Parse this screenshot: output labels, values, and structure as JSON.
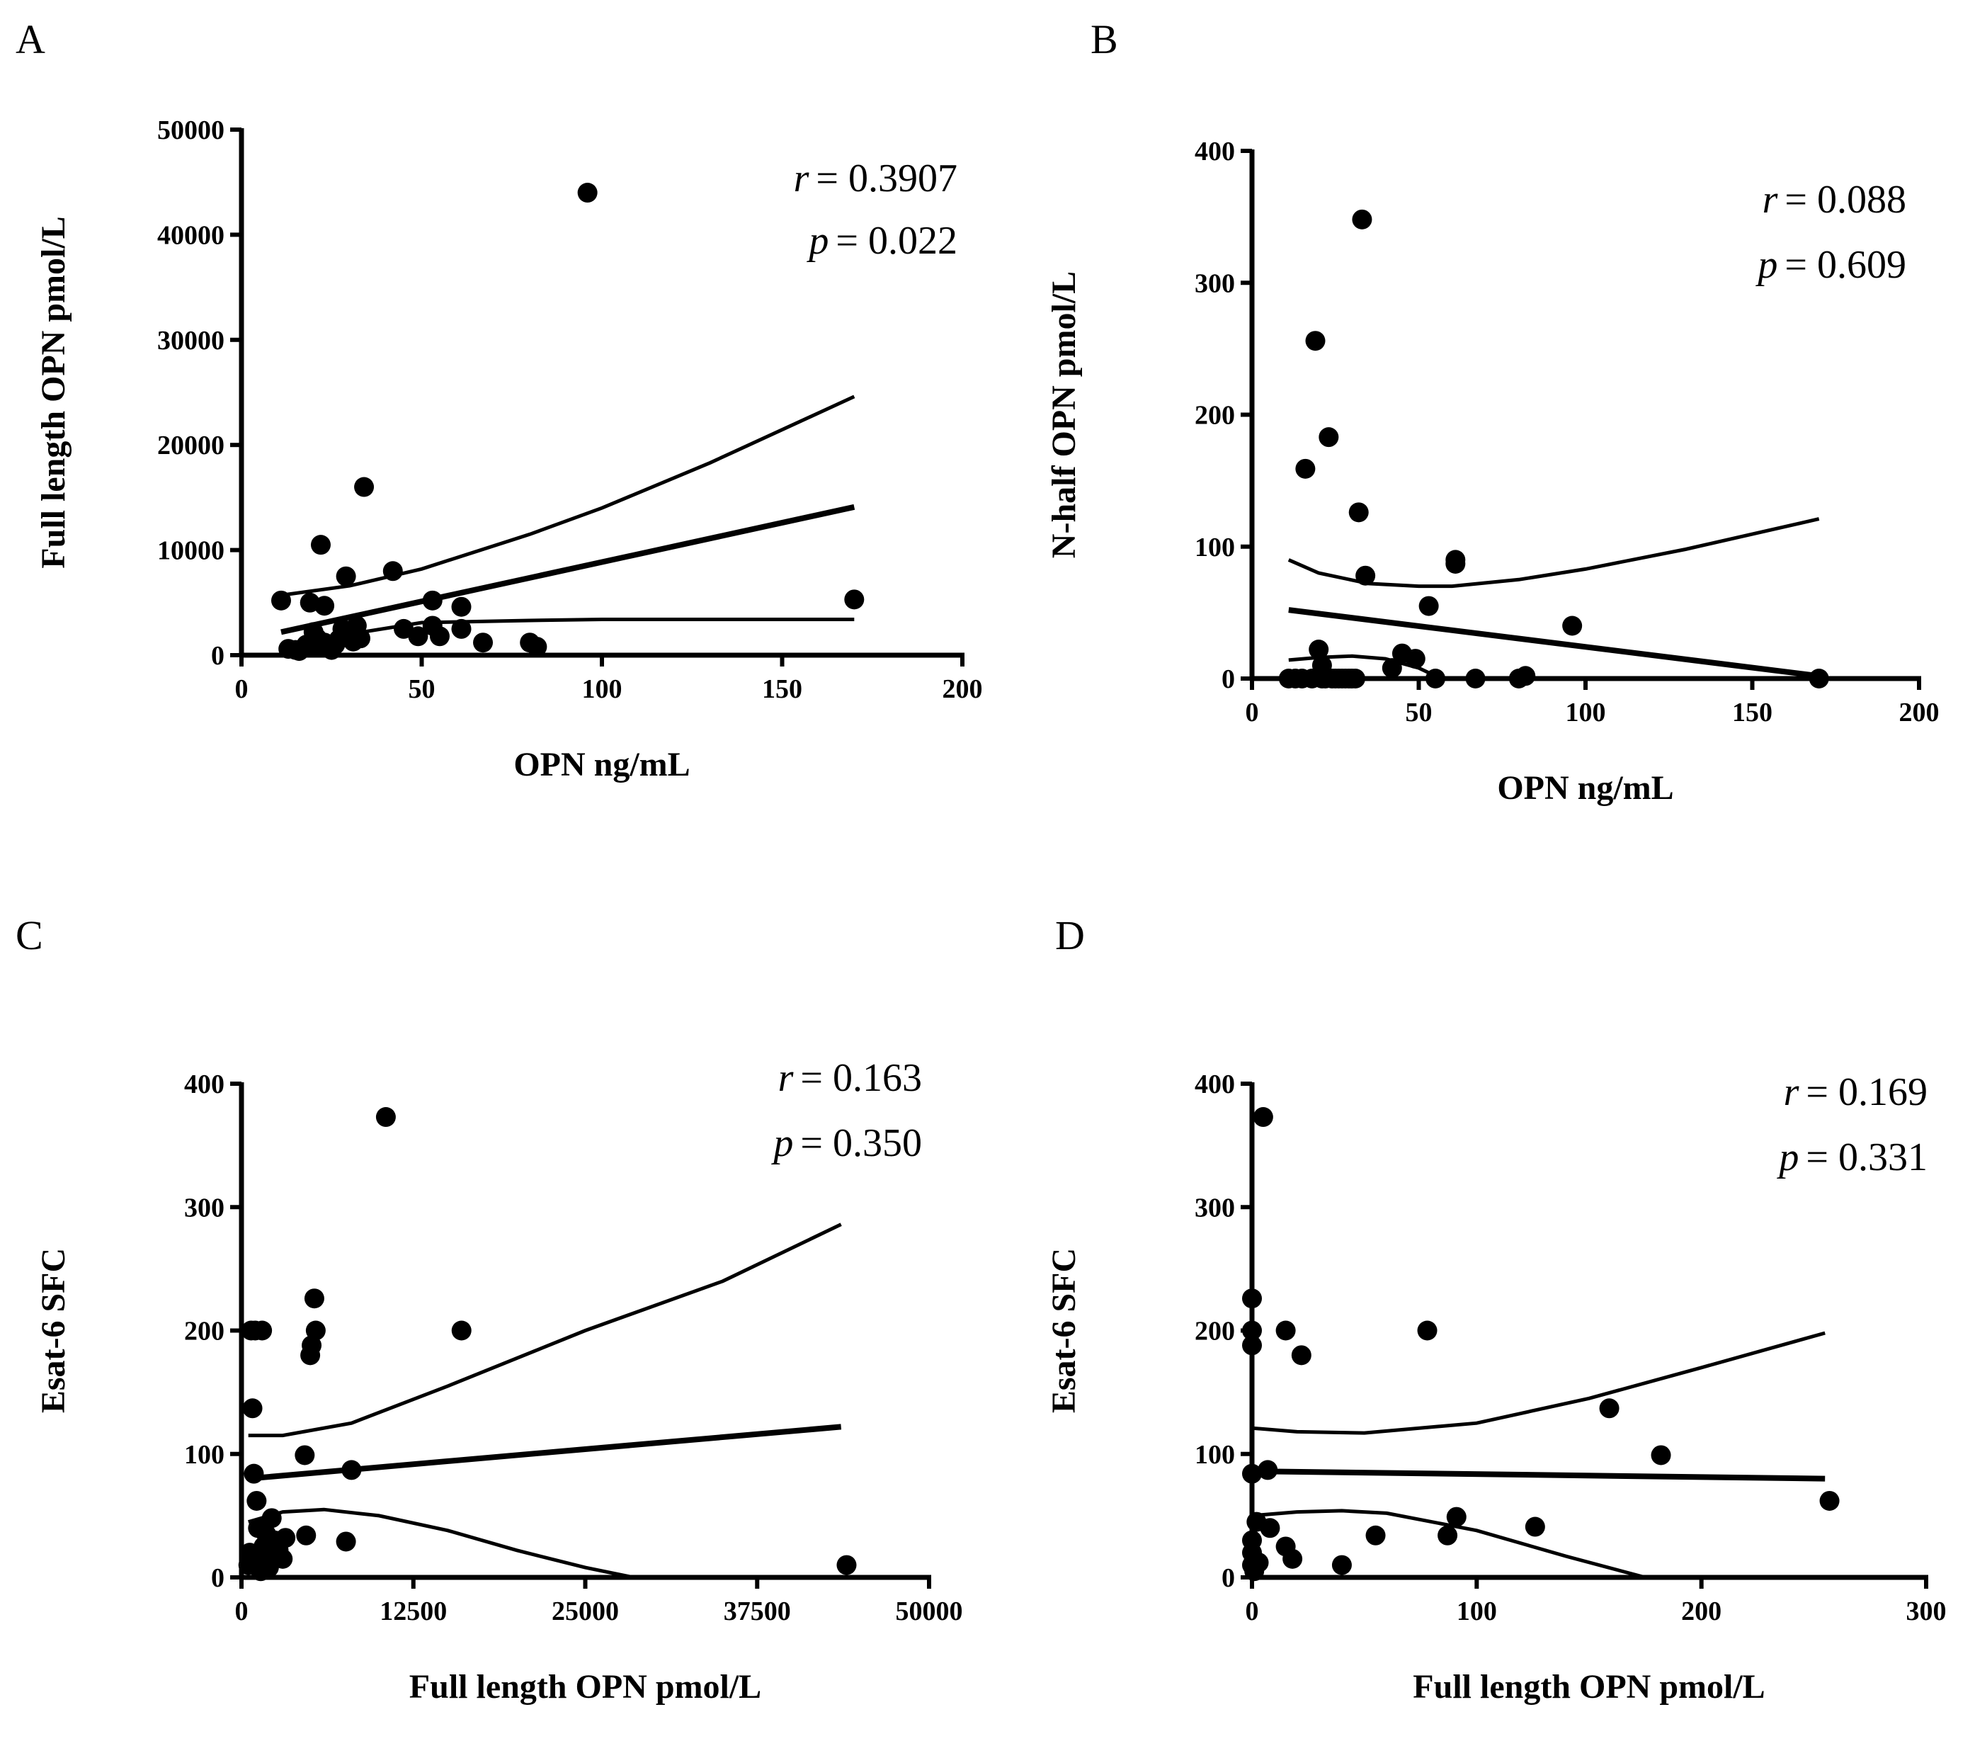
{
  "chart_data": [
    {
      "panel": "A",
      "type": "scatter",
      "xlabel": "OPN ng/mL",
      "ylabel": "Full length OPN pmol/L",
      "xlim": [
        0,
        200
      ],
      "ylim": [
        0,
        50000
      ],
      "xticks": [
        0,
        50,
        100,
        150,
        200
      ],
      "yticks": [
        0,
        10000,
        20000,
        30000,
        40000,
        50000
      ],
      "xtick_labels": [
        "0",
        "50",
        "100",
        "150",
        "200"
      ],
      "ytick_labels": [
        "0",
        "10000",
        "20000",
        "30000",
        "40000",
        "50000"
      ],
      "stat_r_var": "r",
      "stat_r_value": "= 0.3907",
      "stat_p_var": "p",
      "stat_p_value": "= 0.022",
      "points": [
        [
          11,
          5200
        ],
        [
          13,
          600
        ],
        [
          15,
          500
        ],
        [
          16,
          400
        ],
        [
          18,
          1000
        ],
        [
          19,
          5000
        ],
        [
          20,
          2200
        ],
        [
          21,
          1600
        ],
        [
          21,
          900
        ],
        [
          22,
          10500
        ],
        [
          23,
          4700
        ],
        [
          23,
          1200
        ],
        [
          24,
          700
        ],
        [
          25,
          500
        ],
        [
          26,
          1000
        ],
        [
          27,
          1500
        ],
        [
          28,
          2500
        ],
        [
          29,
          7500
        ],
        [
          30,
          1800
        ],
        [
          31,
          1300
        ],
        [
          32,
          2800
        ],
        [
          33,
          1600
        ],
        [
          34,
          16000
        ],
        [
          42,
          8000
        ],
        [
          45,
          2500
        ],
        [
          49,
          1800
        ],
        [
          53,
          5200
        ],
        [
          53,
          2800
        ],
        [
          55,
          1800
        ],
        [
          61,
          4600
        ],
        [
          61,
          2500
        ],
        [
          67,
          1200
        ],
        [
          80,
          1200
        ],
        [
          82,
          800
        ],
        [
          96,
          44000
        ],
        [
          170,
          5300
        ]
      ],
      "fit": [
        [
          11,
          2200
        ],
        [
          170,
          14100
        ]
      ],
      "ci_upper": [
        [
          11,
          5700
        ],
        [
          30,
          6600
        ],
        [
          50,
          8200
        ],
        [
          80,
          11500
        ],
        [
          100,
          14000
        ],
        [
          130,
          18300
        ],
        [
          170,
          24600
        ]
      ],
      "ci_lower": [
        [
          11,
          -1100
        ],
        [
          30,
          2000
        ],
        [
          50,
          3100
        ],
        [
          80,
          3300
        ],
        [
          100,
          3400
        ],
        [
          130,
          3400
        ],
        [
          170,
          3400
        ]
      ]
    },
    {
      "panel": "B",
      "type": "scatter",
      "xlabel": "OPN ng/mL",
      "ylabel": "N-half OPN pmol/L",
      "xlim": [
        0,
        200
      ],
      "ylim": [
        0,
        400
      ],
      "xticks": [
        0,
        50,
        100,
        150,
        200
      ],
      "yticks": [
        0,
        100,
        200,
        300,
        400
      ],
      "xtick_labels": [
        "0",
        "50",
        "100",
        "150",
        "200"
      ],
      "ytick_labels": [
        "0",
        "100",
        "200",
        "300",
        "400"
      ],
      "stat_r_var": "r",
      "stat_r_value": "= 0.088",
      "stat_p_var": "p",
      "stat_p_value": "= 0.609",
      "points": [
        [
          11,
          0
        ],
        [
          13,
          0
        ],
        [
          15,
          0
        ],
        [
          16,
          159
        ],
        [
          18,
          0
        ],
        [
          19,
          256
        ],
        [
          20,
          22
        ],
        [
          21,
          0
        ],
        [
          21,
          10
        ],
        [
          22,
          0
        ],
        [
          23,
          183
        ],
        [
          24,
          0
        ],
        [
          25,
          0
        ],
        [
          26,
          0
        ],
        [
          27,
          0
        ],
        [
          28,
          0
        ],
        [
          29,
          0
        ],
        [
          30,
          0
        ],
        [
          31,
          0
        ],
        [
          32,
          126
        ],
        [
          33,
          348
        ],
        [
          34,
          78
        ],
        [
          42,
          8
        ],
        [
          45,
          19
        ],
        [
          49,
          15
        ],
        [
          53,
          55
        ],
        [
          55,
          0
        ],
        [
          61,
          90
        ],
        [
          61,
          87
        ],
        [
          67,
          0
        ],
        [
          80,
          0
        ],
        [
          82,
          2
        ],
        [
          96,
          40
        ],
        [
          170,
          0
        ]
      ],
      "fit": [
        [
          11,
          52
        ],
        [
          170,
          2
        ]
      ],
      "ci_upper": [
        [
          11,
          90
        ],
        [
          20,
          80
        ],
        [
          35,
          72
        ],
        [
          50,
          70
        ],
        [
          60,
          70
        ],
        [
          80,
          75
        ],
        [
          100,
          83
        ],
        [
          130,
          98
        ],
        [
          170,
          121
        ]
      ],
      "ci_lower": [
        [
          11,
          14
        ],
        [
          20,
          16
        ],
        [
          30,
          17
        ],
        [
          40,
          15
        ],
        [
          50,
          8
        ],
        [
          55,
          2
        ]
      ]
    },
    {
      "panel": "C",
      "type": "scatter",
      "xlabel": "Full length OPN pmol/L",
      "ylabel": "Esat-6 SFC",
      "xlim": [
        0,
        50000
      ],
      "ylim": [
        0,
        400
      ],
      "xticks": [
        0,
        12500,
        25000,
        37500,
        50000
      ],
      "yticks": [
        0,
        100,
        200,
        300,
        400
      ],
      "xtick_labels": [
        "0",
        "12500",
        "25000",
        "37500",
        "50000"
      ],
      "ytick_labels": [
        "0",
        "100",
        "200",
        "300",
        "400"
      ],
      "stat_r_var": "r",
      "stat_r_value": "= 0.163",
      "stat_p_var": "p",
      "stat_p_value": "= 0.350",
      "points": [
        [
          500,
          10
        ],
        [
          600,
          20
        ],
        [
          700,
          200
        ],
        [
          800,
          137
        ],
        [
          900,
          84
        ],
        [
          1000,
          200
        ],
        [
          1100,
          62
        ],
        [
          1200,
          40
        ],
        [
          1300,
          15
        ],
        [
          1400,
          5
        ],
        [
          1500,
          200
        ],
        [
          1600,
          25
        ],
        [
          1700,
          12
        ],
        [
          1800,
          35
        ],
        [
          2000,
          8
        ],
        [
          2200,
          48
        ],
        [
          2400,
          30
        ],
        [
          2700,
          22
        ],
        [
          3000,
          15
        ],
        [
          3200,
          32
        ],
        [
          4600,
          99
        ],
        [
          4700,
          34
        ],
        [
          5000,
          180
        ],
        [
          5100,
          188
        ],
        [
          5300,
          226
        ],
        [
          5400,
          200
        ],
        [
          7600,
          29
        ],
        [
          8000,
          87
        ],
        [
          10500,
          373
        ],
        [
          16000,
          200
        ],
        [
          44000,
          10
        ]
      ],
      "fit": [
        [
          500,
          80
        ],
        [
          43600,
          122
        ]
      ],
      "ci_upper": [
        [
          500,
          115
        ],
        [
          3000,
          115
        ],
        [
          8000,
          125
        ],
        [
          15000,
          155
        ],
        [
          25000,
          200
        ],
        [
          35000,
          240
        ],
        [
          43600,
          286
        ]
      ],
      "ci_lower": [
        [
          500,
          45
        ],
        [
          3000,
          53
        ],
        [
          6000,
          55
        ],
        [
          10000,
          50
        ],
        [
          15000,
          38
        ],
        [
          20000,
          22
        ],
        [
          25000,
          8
        ],
        [
          28500,
          0
        ]
      ]
    },
    {
      "panel": "D",
      "type": "scatter",
      "xlabel": "Full length OPN pmol/L",
      "ylabel": "Esat-6 SFC",
      "xlim": [
        0,
        300
      ],
      "ylim": [
        0,
        400
      ],
      "xticks": [
        0,
        100,
        200,
        300
      ],
      "yticks": [
        0,
        100,
        200,
        300,
        400
      ],
      "xtick_labels": [
        "0",
        "100",
        "200",
        "300"
      ],
      "ytick_labels": [
        "0",
        "100",
        "200",
        "300",
        "400"
      ],
      "stat_r_var": "r",
      "stat_r_value": "= 0.169",
      "stat_p_var": "p",
      "stat_p_value": "= 0.331",
      "points": [
        [
          0,
          226
        ],
        [
          0,
          200
        ],
        [
          0,
          188
        ],
        [
          0,
          84
        ],
        [
          0,
          30
        ],
        [
          0,
          20
        ],
        [
          0,
          10
        ],
        [
          1,
          5
        ],
        [
          2,
          45
        ],
        [
          3,
          12
        ],
        [
          5,
          373
        ],
        [
          7,
          87
        ],
        [
          8,
          40
        ],
        [
          15,
          200
        ],
        [
          15,
          25
        ],
        [
          18,
          15
        ],
        [
          22,
          180
        ],
        [
          40,
          10
        ],
        [
          55,
          34
        ],
        [
          78,
          200
        ],
        [
          87,
          34
        ],
        [
          91,
          49
        ],
        [
          126,
          41
        ],
        [
          159,
          137
        ],
        [
          182,
          99
        ],
        [
          257,
          62
        ]
      ],
      "fit": [
        [
          0,
          86
        ],
        [
          255,
          80
        ]
      ],
      "ci_upper": [
        [
          0,
          121
        ],
        [
          20,
          118
        ],
        [
          50,
          117
        ],
        [
          100,
          125
        ],
        [
          150,
          145
        ],
        [
          200,
          170
        ],
        [
          255,
          198
        ]
      ],
      "ci_lower": [
        [
          0,
          50
        ],
        [
          20,
          53
        ],
        [
          40,
          54
        ],
        [
          60,
          52
        ],
        [
          100,
          38
        ],
        [
          140,
          17
        ],
        [
          175,
          0
        ]
      ]
    }
  ]
}
